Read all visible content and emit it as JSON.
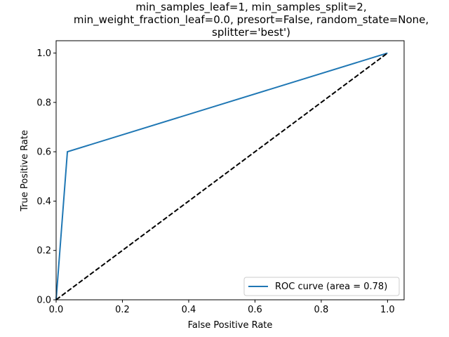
{
  "chart_data": {
    "type": "line",
    "title_lines": [
      "min_samples_leaf=1, min_samples_split=2,",
      "min_weight_fraction_leaf=0.0, presort=False, random_state=None,",
      "splitter='best')"
    ],
    "xlabel": "False Positive Rate",
    "ylabel": "True Positive Rate",
    "xlim": [
      0.0,
      1.05
    ],
    "ylim": [
      0.0,
      1.05
    ],
    "xticks": [
      0.0,
      0.2,
      0.4,
      0.6,
      0.8,
      1.0
    ],
    "yticks": [
      0.0,
      0.2,
      0.4,
      0.6,
      0.8,
      1.0
    ],
    "xtick_labels": [
      "0.0",
      "0.2",
      "0.4",
      "0.6",
      "0.8",
      "1.0"
    ],
    "ytick_labels": [
      "0.0",
      "0.2",
      "0.4",
      "0.6",
      "0.8",
      "1.0"
    ],
    "grid": false,
    "legend_position": "lower-right",
    "series": [
      {
        "name": "ROC curve (area = 0.78)",
        "color": "#1f77b4",
        "style": "solid",
        "x": [
          0.0,
          0.034,
          1.0
        ],
        "y": [
          0.0,
          0.6,
          1.0
        ]
      },
      {
        "color": "#000000",
        "style": "dashed",
        "x": [
          0.0,
          1.0
        ],
        "y": [
          0.0,
          1.0
        ]
      }
    ]
  }
}
